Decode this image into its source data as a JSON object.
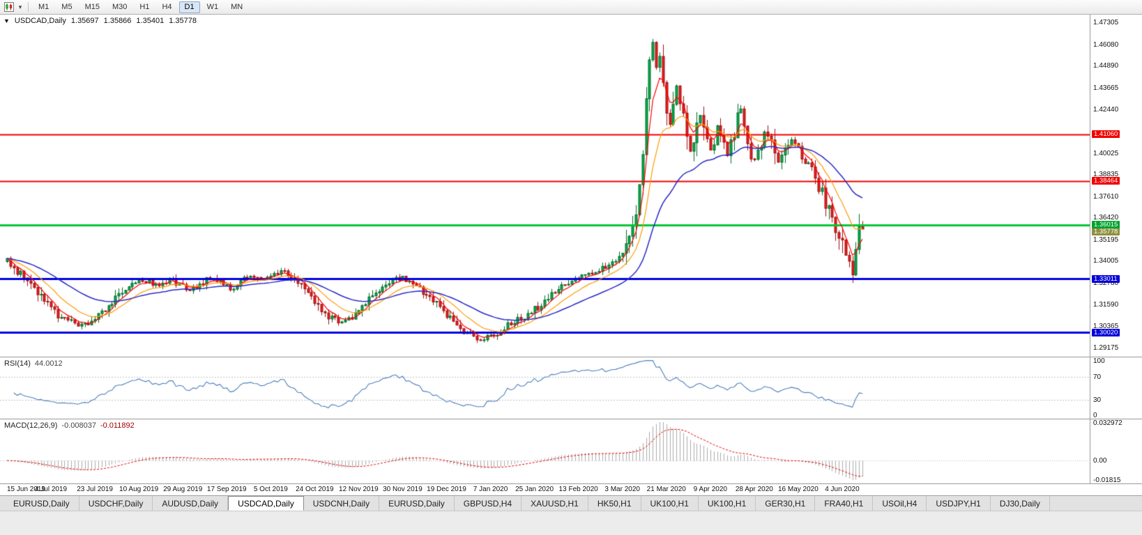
{
  "icons": {
    "caret_down": "▾",
    "collapse_marker": "▼"
  },
  "toolbar": {
    "timeframes": [
      "M1",
      "M5",
      "M15",
      "M30",
      "H1",
      "H4",
      "D1",
      "W1",
      "MN"
    ],
    "active_timeframe": "D1"
  },
  "header": {
    "symbol": "USDCAD,Daily",
    "open": "1.35697",
    "high": "1.35866",
    "low": "1.35401",
    "close": "1.35778"
  },
  "price_axis": {
    "ticks": [
      "1.47305",
      "1.46080",
      "1.44890",
      "1.43665",
      "1.42440",
      "1.40025",
      "1.38835",
      "1.37610",
      "1.36420",
      "1.35195",
      "1.34005",
      "1.32780",
      "1.31590",
      "1.30365",
      "1.29175"
    ],
    "badges": [
      {
        "value": "1.41060",
        "price": 1.4106,
        "bg": "#f00000",
        "fg": "#ffffff"
      },
      {
        "value": "1.38464",
        "price": 1.38464,
        "bg": "#f00000",
        "fg": "#ffffff"
      },
      {
        "value": "1.36015",
        "price": 1.36015,
        "bg": "#00a22e",
        "fg": "#ffffff"
      },
      {
        "value": "1.33011",
        "price": 1.33011,
        "bg": "#0000d8",
        "fg": "#ffffff"
      },
      {
        "value": "1.30020",
        "price": 1.3002,
        "bg": "#0000d8",
        "fg": "#ffffff"
      }
    ],
    "current": {
      "value": "1.35778",
      "price": 1.35778,
      "bg": "#8f8f3f",
      "fg": "#ffffff"
    }
  },
  "rsi_panel": {
    "name": "RSI(14)",
    "value": "44.0012",
    "line_color": "#4a7ebb",
    "level_line_color": "#c0c0c0",
    "levels": [
      70,
      30
    ],
    "axis_ticks": [
      {
        "label": "100",
        "v": 100
      },
      {
        "label": "70",
        "v": 70
      },
      {
        "label": "30",
        "v": 30
      },
      {
        "label": "0",
        "v": 0
      }
    ]
  },
  "macd_panel": {
    "name": "MACD(12,26,9)",
    "value_main": "-0.008037",
    "value_signal": "-0.011892",
    "hist_color": "#ababab",
    "signal_color": "#e00000",
    "zero_line_color": "#bbbbbb",
    "axis_ticks": [
      {
        "label": "0.032972",
        "v": 0.032972
      },
      {
        "label": "0.00",
        "v": 0.0
      },
      {
        "label": "-0.01815",
        "v": -0.01815
      }
    ]
  },
  "date_axis": [
    {
      "bar": 0,
      "label": "15 Jun 2019"
    },
    {
      "bar": 13,
      "label": "4 Jul 2019"
    },
    {
      "bar": 26,
      "label": "23 Jul 2019"
    },
    {
      "bar": 39,
      "label": "10 Aug 2019"
    },
    {
      "bar": 52,
      "label": "29 Aug 2019"
    },
    {
      "bar": 65,
      "label": "17 Sep 2019"
    },
    {
      "bar": 78,
      "label": "5 Oct 2019"
    },
    {
      "bar": 91,
      "label": "24 Oct 2019"
    },
    {
      "bar": 104,
      "label": "12 Nov 2019"
    },
    {
      "bar": 117,
      "label": "30 Nov 2019"
    },
    {
      "bar": 130,
      "label": "19 Dec 2019"
    },
    {
      "bar": 143,
      "label": "7 Jan 2020"
    },
    {
      "bar": 156,
      "label": "25 Jan 2020"
    },
    {
      "bar": 169,
      "label": "13 Feb 2020"
    },
    {
      "bar": 182,
      "label": "3 Mar 2020"
    },
    {
      "bar": 195,
      "label": "21 Mar 2020"
    },
    {
      "bar": 208,
      "label": "9 Apr 2020"
    },
    {
      "bar": 221,
      "label": "28 Apr 2020"
    },
    {
      "bar": 234,
      "label": "16 May 2020"
    },
    {
      "bar": 247,
      "label": "4 Jun 2020"
    }
  ],
  "tabs": {
    "active_index": 3,
    "items": [
      "EURUSD,Daily",
      "USDCHF,Daily",
      "AUDUSD,Daily",
      "USDCAD,Daily",
      "USDCNH,Daily",
      "EURUSD,Daily",
      "GBPUSD,H4",
      "XAUUSD,H1",
      "HK50,H1",
      "UK100,H1",
      "UK100,H1",
      "GER30,H1",
      "FRA40,H1",
      "USOil,H4",
      "USDJPY,H1",
      "DJ30,Daily"
    ],
    "separator": "|"
  },
  "chart_data": {
    "type": "candlestick",
    "symbol": "USDCAD",
    "timeframe": "Daily",
    "bars": 254,
    "price_range": [
      1.2878,
      1.4762
    ],
    "last_bar": {
      "open": 1.35697,
      "high": 1.35866,
      "low": 1.35401,
      "close": 1.35778
    },
    "candle_up_color": "#00b050",
    "candle_up_edge": "#006a26",
    "candle_down_color": "#ee1c1c",
    "candle_down_edge": "#9c0f0f",
    "moving_averages": [
      {
        "period": 5,
        "type": "ema",
        "color": "#ff0000",
        "width": 1.2
      },
      {
        "period": 13,
        "type": "ema",
        "color": "#ff9900",
        "width": 1.2
      },
      {
        "period": 34,
        "type": "ema",
        "color": "#2929c8",
        "width": 1.5
      }
    ],
    "levels": [
      {
        "price": 1.4106,
        "color": "#f00000",
        "width": 2
      },
      {
        "price": 1.38464,
        "color": "#f00000",
        "width": 2
      },
      {
        "price": 1.36015,
        "color": "#00c832",
        "width": 3
      },
      {
        "price": 1.33011,
        "color": "#0000e1",
        "width": 3
      },
      {
        "price": 1.3002,
        "color": "#0000e1",
        "width": 3
      }
    ],
    "close_anchors": [
      [
        0,
        1.3405
      ],
      [
        3,
        1.334
      ],
      [
        6,
        1.329
      ],
      [
        9,
        1.323
      ],
      [
        12,
        1.315
      ],
      [
        15,
        1.3095
      ],
      [
        18,
        1.307
      ],
      [
        21,
        1.304
      ],
      [
        24,
        1.306
      ],
      [
        27,
        1.3105
      ],
      [
        30,
        1.315
      ],
      [
        33,
        1.3205
      ],
      [
        36,
        1.327
      ],
      [
        39,
        1.3305
      ],
      [
        42,
        1.328
      ],
      [
        45,
        1.3255
      ],
      [
        48,
        1.33
      ],
      [
        51,
        1.327
      ],
      [
        54,
        1.323
      ],
      [
        57,
        1.326
      ],
      [
        60,
        1.3305
      ],
      [
        63,
        1.328
      ],
      [
        66,
        1.3245
      ],
      [
        69,
        1.329
      ],
      [
        72,
        1.332
      ],
      [
        75,
        1.329
      ],
      [
        78,
        1.332
      ],
      [
        81,
        1.334
      ],
      [
        84,
        1.33
      ],
      [
        87,
        1.326
      ],
      [
        90,
        1.32
      ],
      [
        93,
        1.313
      ],
      [
        96,
        1.308
      ],
      [
        99,
        1.306
      ],
      [
        102,
        1.309
      ],
      [
        105,
        1.314
      ],
      [
        108,
        1.32
      ],
      [
        111,
        1.325
      ],
      [
        114,
        1.329
      ],
      [
        117,
        1.331
      ],
      [
        120,
        1.328
      ],
      [
        123,
        1.323
      ],
      [
        126,
        1.318
      ],
      [
        129,
        1.312
      ],
      [
        132,
        1.306
      ],
      [
        135,
        1.301
      ],
      [
        138,
        1.2975
      ],
      [
        141,
        1.296
      ],
      [
        144,
        1.299
      ],
      [
        147,
        1.303
      ],
      [
        150,
        1.306
      ],
      [
        153,
        1.309
      ],
      [
        156,
        1.313
      ],
      [
        159,
        1.318
      ],
      [
        162,
        1.323
      ],
      [
        165,
        1.327
      ],
      [
        168,
        1.33
      ],
      [
        171,
        1.332
      ],
      [
        174,
        1.334
      ],
      [
        177,
        1.3365
      ],
      [
        180,
        1.34
      ],
      [
        182,
        1.343
      ],
      [
        184,
        1.354
      ],
      [
        186,
        1.37
      ],
      [
        188,
        1.4
      ],
      [
        189,
        1.425
      ],
      [
        190,
        1.45
      ],
      [
        191,
        1.462
      ],
      [
        192,
        1.448
      ],
      [
        193,
        1.455
      ],
      [
        194,
        1.438
      ],
      [
        195,
        1.424
      ],
      [
        196,
        1.414
      ],
      [
        197,
        1.428
      ],
      [
        198,
        1.438
      ],
      [
        199,
        1.429
      ],
      [
        200,
        1.417
      ],
      [
        201,
        1.409
      ],
      [
        202,
        1.402
      ],
      [
        203,
        1.409
      ],
      [
        204,
        1.416
      ],
      [
        205,
        1.422
      ],
      [
        206,
        1.415
      ],
      [
        207,
        1.408
      ],
      [
        208,
        1.403
      ],
      [
        209,
        1.409
      ],
      [
        210,
        1.415
      ],
      [
        211,
        1.409
      ],
      [
        212,
        1.403
      ],
      [
        213,
        1.398
      ],
      [
        214,
        1.405
      ],
      [
        215,
        1.412
      ],
      [
        216,
        1.418
      ],
      [
        217,
        1.423
      ],
      [
        218,
        1.415
      ],
      [
        219,
        1.407
      ],
      [
        220,
        1.401
      ],
      [
        221,
        1.397
      ],
      [
        222,
        1.402
      ],
      [
        223,
        1.408
      ],
      [
        224,
        1.412
      ],
      [
        226,
        1.405
      ],
      [
        228,
        1.396
      ],
      [
        230,
        1.401
      ],
      [
        232,
        1.407
      ],
      [
        234,
        1.402
      ],
      [
        236,
        1.396
      ],
      [
        238,
        1.389
      ],
      [
        240,
        1.381
      ],
      [
        242,
        1.373
      ],
      [
        244,
        1.364
      ],
      [
        246,
        1.353
      ],
      [
        248,
        1.342
      ],
      [
        249,
        1.337
      ],
      [
        250,
        1.333
      ],
      [
        251,
        1.345
      ],
      [
        252,
        1.362
      ],
      [
        253,
        1.35778
      ]
    ]
  }
}
